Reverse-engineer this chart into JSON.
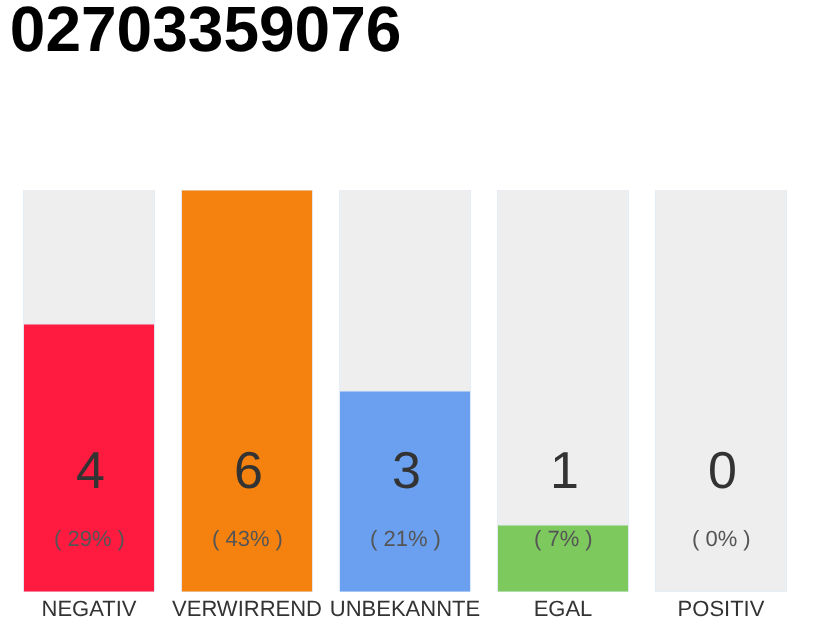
{
  "chart_data": {
    "type": "bar",
    "title": "02703359076",
    "categories": [
      "NEGATIV",
      "VERWIRREND",
      "UNBEKANNTE",
      "EGAL",
      "POSITIV"
    ],
    "values": [
      4,
      6,
      3,
      1,
      0
    ],
    "colors": [
      "#ff1a40",
      "#f5820f",
      "#6aa0ef",
      "#7dc95e",
      "#eeeeee"
    ],
    "value_labels": [
      "4\n( 29% )",
      "6\n( 43% )",
      "3\n( 21% )",
      "1\n( 7% )",
      "0\n( 0% )"
    ],
    "ylim": [
      0,
      6
    ],
    "tick_labels": "x",
    "legend": false
  }
}
